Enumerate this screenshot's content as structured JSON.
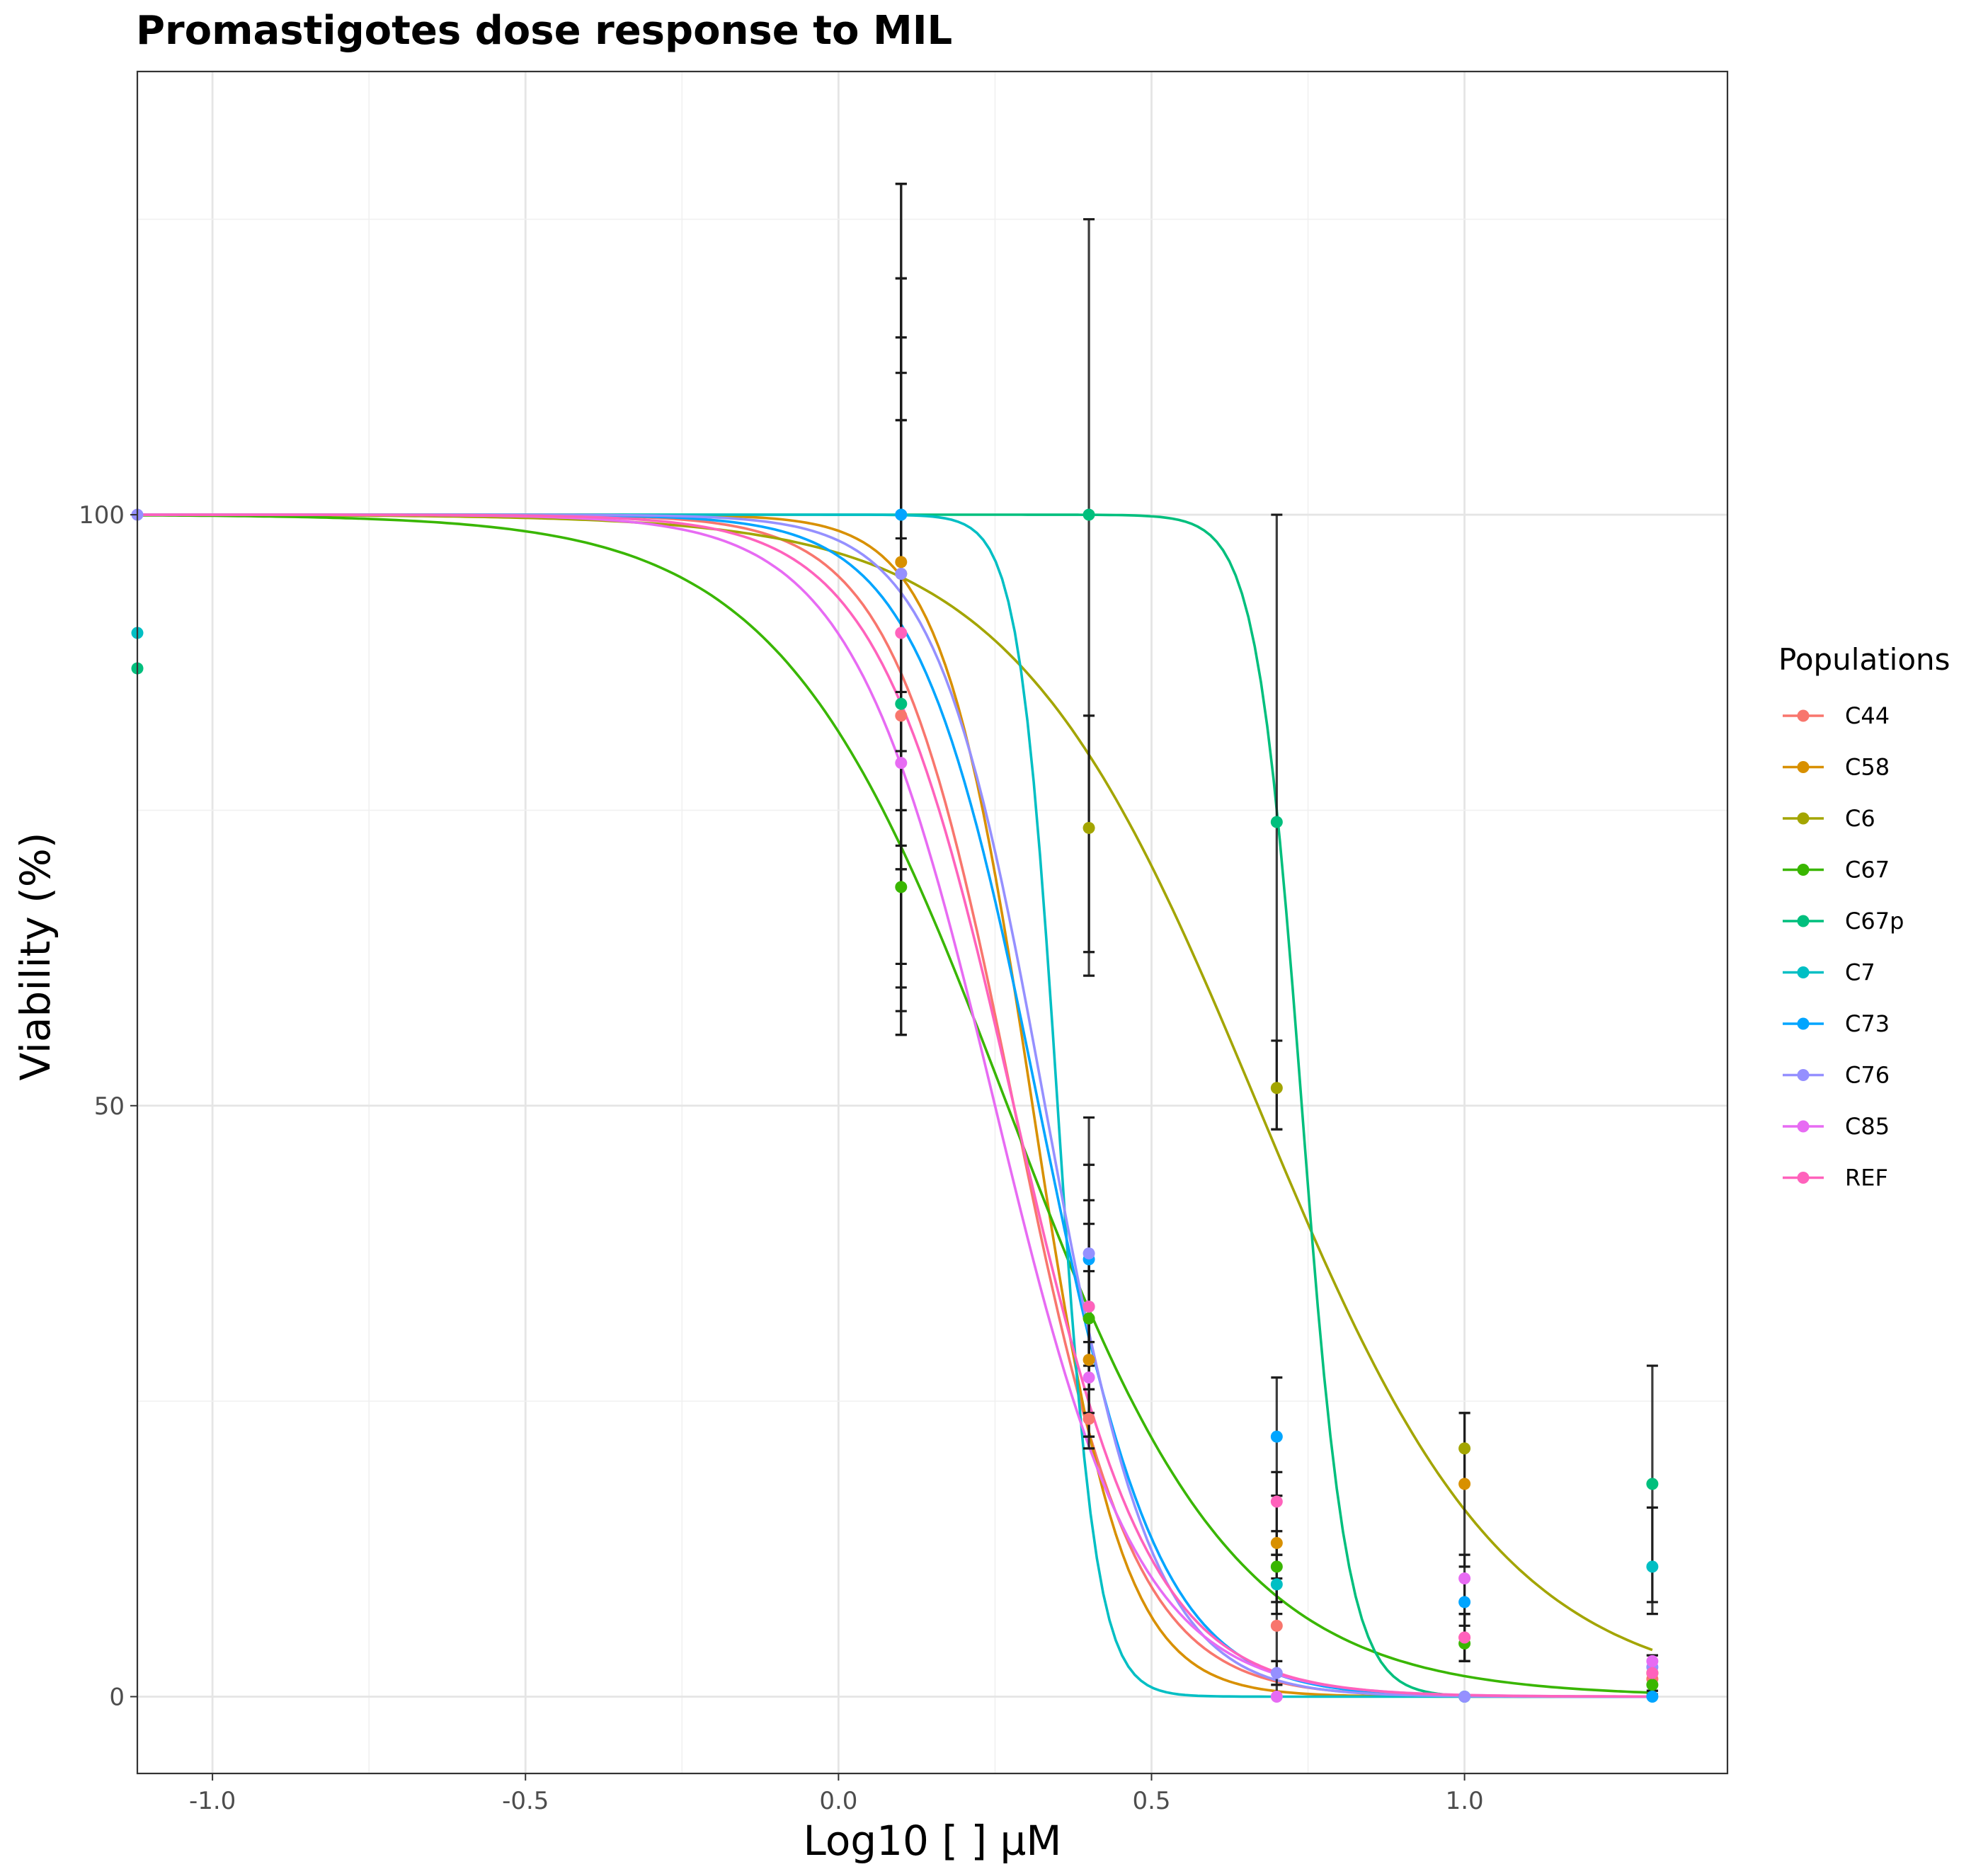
{
  "chart_data": {
    "type": "line",
    "title": "Promastigotes dose response to MIL",
    "xlabel": "Log10 [ ] µM",
    "ylabel": "Viability (%)",
    "xlim": [
      -1.12,
      1.42
    ],
    "ylim": [
      -6.5,
      137.5
    ],
    "x_ticks": [
      -1.0,
      -0.5,
      0.0,
      0.5,
      1.0
    ],
    "x_tick_labels": [
      "-1.0",
      "-0.5",
      "0.0",
      "0.5",
      "1.0"
    ],
    "y_ticks": [
      0,
      50,
      100
    ],
    "y_tick_labels": [
      "0",
      "50",
      "100"
    ],
    "grid": true,
    "legend": {
      "title": "Populations",
      "position": "right"
    },
    "x_range_fit": [
      -1.12,
      1.3
    ],
    "series": [
      {
        "name": "C44",
        "color": "#F8766D",
        "fit": {
          "top": 100,
          "bottom": 0,
          "logEC50": 0.28,
          "hill": 4.5
        },
        "points": [
          [
            0.1,
            83
          ],
          [
            0.4,
            23.5
          ],
          [
            0.7,
            6
          ],
          [
            1.0,
            5
          ],
          [
            1.3,
            1.5
          ]
        ],
        "errors": [
          [
            0.1,
            58,
            108
          ],
          [
            0.4,
            21,
            26
          ],
          [
            0.7,
            2,
            10
          ],
          [
            1.0,
            3,
            7
          ],
          [
            1.3,
            0.5,
            2.5
          ]
        ]
      },
      {
        "name": "C58",
        "color": "#D89000",
        "fit": {
          "top": 100,
          "bottom": 0,
          "logEC50": 0.31,
          "hill": 6.0
        },
        "points": [
          [
            0.1,
            96
          ],
          [
            0.4,
            28.5
          ],
          [
            0.7,
            13
          ],
          [
            1.0,
            18
          ],
          [
            1.3,
            2
          ]
        ],
        "errors": [
          [
            0.1,
            80,
            112
          ],
          [
            0.4,
            24,
            33
          ],
          [
            0.7,
            8,
            17
          ],
          [
            1.0,
            11,
            24
          ],
          [
            1.3,
            0.5,
            3.5
          ]
        ]
      },
      {
        "name": "C6",
        "color": "#A3A500",
        "fit": {
          "top": 100,
          "bottom": 0,
          "logEC50": 0.67,
          "hill": 2.2
        },
        "points": [
          [
            0.1,
            95
          ],
          [
            0.4,
            73.5
          ],
          [
            0.7,
            51.5
          ],
          [
            1.0,
            21
          ],
          [
            1.3,
            2
          ]
        ],
        "errors": [
          [
            0.1,
            70,
            120
          ],
          [
            0.4,
            63,
            83
          ],
          [
            0.7,
            48,
            55.5
          ],
          [
            1.0,
            18,
            24
          ],
          [
            1.3,
            1,
            3
          ]
        ]
      },
      {
        "name": "C67",
        "color": "#39B600",
        "fit": {
          "top": 100,
          "bottom": 0,
          "logEC50": 0.27,
          "hill": 2.4
        },
        "points": [
          [
            0.1,
            68.5
          ],
          [
            0.4,
            32
          ],
          [
            0.7,
            11
          ],
          [
            1.0,
            4.5
          ],
          [
            1.3,
            1
          ]
        ],
        "errors": [
          [
            0.1,
            62,
            75
          ],
          [
            0.4,
            28,
            36
          ],
          [
            0.7,
            8,
            14
          ],
          [
            1.0,
            3,
            6
          ],
          [
            1.3,
            0.2,
            2
          ]
        ]
      },
      {
        "name": "C67p",
        "color": "#00BF7D",
        "fit": {
          "top": 100,
          "bottom": 0,
          "logEC50": 0.74,
          "hill": 12
        },
        "points": [
          [
            -1.12,
            87
          ],
          [
            0.1,
            84
          ],
          [
            0.4,
            100
          ],
          [
            0.7,
            74
          ],
          [
            1.0,
            0
          ],
          [
            1.3,
            18
          ]
        ],
        "errors": [
          [
            0.1,
            56,
            128
          ],
          [
            0.4,
            61,
            125
          ],
          [
            0.7,
            48,
            100
          ],
          [
            1.3,
            7,
            28
          ]
        ]
      },
      {
        "name": "C7",
        "color": "#00BFC4",
        "fit": {
          "top": 100,
          "bottom": 0,
          "logEC50": 0.35,
          "hill": 14
        },
        "points": [
          [
            -1.12,
            90
          ],
          [
            0.1,
            100
          ],
          [
            0.4,
            33
          ],
          [
            0.7,
            9.5
          ],
          [
            1.0,
            0
          ],
          [
            1.3,
            11
          ]
        ],
        "errors": [
          [
            0.1,
            56,
            128
          ],
          [
            0.4,
            22,
            49
          ],
          [
            0.7,
            7,
            12
          ],
          [
            1.3,
            8,
            16
          ]
        ]
      },
      {
        "name": "C73",
        "color": "#00A5FF",
        "fit": {
          "top": 100,
          "bottom": 0,
          "logEC50": 0.32,
          "hill": 4.5
        },
        "points": [
          [
            0.1,
            100
          ],
          [
            0.4,
            37
          ],
          [
            0.7,
            22
          ],
          [
            1.0,
            8
          ],
          [
            1.3,
            0
          ]
        ],
        "errors": [
          [
            0.1,
            85,
            115
          ],
          [
            0.4,
            26,
            42
          ],
          [
            0.7,
            17,
            27
          ],
          [
            1.0,
            5,
            10
          ],
          [
            1.3,
            0,
            1
          ]
        ]
      },
      {
        "name": "C76",
        "color": "#9590FF",
        "fit": {
          "top": 100,
          "bottom": 0,
          "logEC50": 0.33,
          "hill": 5.0
        },
        "points": [
          [
            -1.12,
            100
          ],
          [
            0.1,
            95
          ],
          [
            0.4,
            37.5
          ],
          [
            0.7,
            2
          ],
          [
            1.0,
            0
          ],
          [
            1.3,
            2.5
          ]
        ],
        "errors": [
          [
            0.1,
            70,
            120
          ],
          [
            0.4,
            30,
            45
          ],
          [
            0.7,
            1,
            3
          ],
          [
            1.3,
            1,
            3.5
          ]
        ]
      },
      {
        "name": "C85",
        "color": "#E76BF3",
        "fit": {
          "top": 100,
          "bottom": 0,
          "logEC50": 0.25,
          "hill": 3.8
        },
        "points": [
          [
            0.1,
            79
          ],
          [
            0.4,
            27
          ],
          [
            0.7,
            0
          ],
          [
            1.0,
            10
          ],
          [
            1.3,
            3
          ]
        ],
        "errors": [
          [
            0.1,
            60,
            98
          ],
          [
            0.4,
            22,
            32
          ],
          [
            0.7,
            0,
            1
          ],
          [
            1.0,
            7,
            12
          ],
          [
            1.3,
            2,
            3.5
          ]
        ]
      },
      {
        "name": "REF",
        "color": "#FF62BC",
        "fit": {
          "top": 100,
          "bottom": 0,
          "logEC50": 0.28,
          "hill": 4.0
        },
        "points": [
          [
            0.1,
            90
          ],
          [
            0.4,
            33
          ],
          [
            0.7,
            16.5
          ],
          [
            1.0,
            5
          ],
          [
            1.3,
            2
          ]
        ],
        "errors": [
          [
            0.1,
            72,
            108
          ],
          [
            0.4,
            26,
            40
          ],
          [
            0.7,
            12,
            19
          ],
          [
            1.0,
            3,
            7
          ],
          [
            1.3,
            1,
            3
          ]
        ]
      }
    ]
  }
}
